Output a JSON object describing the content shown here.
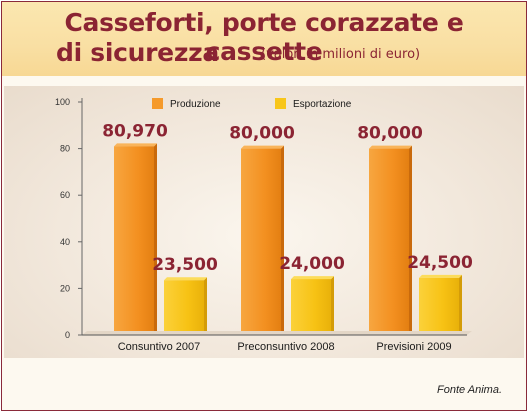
{
  "header": {
    "title_line1": "Casseforti, porte corazzate e cassette",
    "title_line2": "di sicurezza",
    "subtitle": "(valori in milioni di euro)"
  },
  "source": "Fonte Anima.",
  "colors": {
    "title": "#8b2433",
    "produzione": "#f59a2b",
    "esportazione": "#f8c61a",
    "value_label": "#8b2433"
  },
  "chart_data": {
    "type": "bar",
    "title": "Casseforti, porte corazzate e cassette di sicurezza",
    "subtitle": "(valori in milioni di euro)",
    "categories": [
      "Consuntivo 2007",
      "Preconsuntivo 2008",
      "Previsioni 2009"
    ],
    "series": [
      {
        "name": "Produzione",
        "values": [
          80.97,
          80.0,
          80.0
        ],
        "labels": [
          "80,970",
          "80,000",
          "80,000"
        ],
        "color": "#f59a2b"
      },
      {
        "name": "Esportazione",
        "values": [
          23.5,
          24.0,
          24.5
        ],
        "labels": [
          "23,500",
          "24,000",
          "24,500"
        ],
        "color": "#f8c61a"
      }
    ],
    "yticks": [
      "0",
      "20",
      "40",
      "60",
      "80",
      "100"
    ],
    "ylim": [
      0,
      100
    ],
    "grid": false,
    "legend": "top-center"
  }
}
